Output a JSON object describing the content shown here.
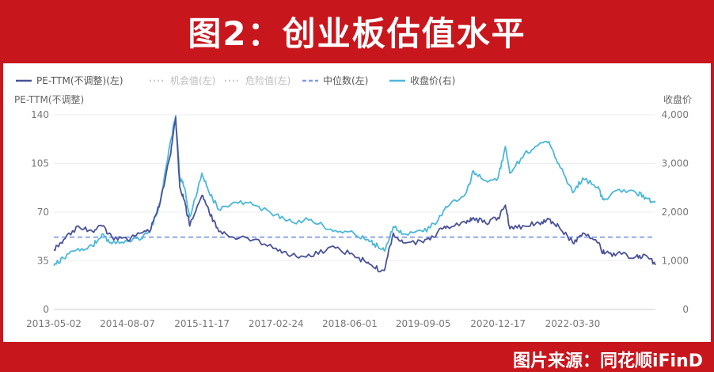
{
  "banner": {
    "title": "图2：创业板估值水平"
  },
  "footer": {
    "source": "图片来源：同花顺iFinD"
  },
  "chart_data": {
    "type": "line",
    "legend": [
      {
        "label": "PE-TTM(不调整)(左)",
        "color": "#4a5299",
        "style": "solid",
        "faded": false
      },
      {
        "label": "机会值(左)",
        "color": "#cccccc",
        "style": "dotted",
        "faded": true
      },
      {
        "label": "危险值(左)",
        "color": "#cccccc",
        "style": "dotted",
        "faded": true
      },
      {
        "label": "中位数(左)",
        "color": "#7f9be8",
        "style": "dashed",
        "faded": false
      },
      {
        "label": "收盘价(右)",
        "color": "#4bb8d9",
        "style": "solid",
        "faded": false
      }
    ],
    "ylabel_left": "PE-TTM(不调整)",
    "ylabel_right": "收盘价",
    "ylim_left": [
      0,
      140
    ],
    "ylim_right": [
      0,
      4000
    ],
    "yticks_left": [
      "0",
      "35",
      "70",
      "105",
      "140"
    ],
    "yticks_right": [
      "0",
      "1,000",
      "2,000",
      "3,000",
      "4,000"
    ],
    "xticks": [
      "2013-05-02",
      "2014-08-07",
      "2015-11-17",
      "2017-02-24",
      "2018-06-01",
      "2019-09-05",
      "2020-12-17",
      "2022-03-30"
    ],
    "x_range": [
      "2013-05-02",
      "2023-08-31"
    ],
    "grid": true,
    "legend_position": "top-left",
    "median_pe": 52,
    "series": [
      {
        "name": "PE-TTM(不调整)(左)",
        "axis": "left",
        "points": [
          [
            "2013-05-02",
            43
          ],
          [
            "2013-07-01",
            50
          ],
          [
            "2013-10-01",
            60
          ],
          [
            "2014-01-01",
            56
          ],
          [
            "2014-03-01",
            60
          ],
          [
            "2014-05-01",
            52
          ],
          [
            "2014-08-07",
            50
          ],
          [
            "2014-11-01",
            55
          ],
          [
            "2015-01-01",
            58
          ],
          [
            "2015-03-01",
            78
          ],
          [
            "2015-05-01",
            110
          ],
          [
            "2015-06-05",
            138
          ],
          [
            "2015-07-01",
            88
          ],
          [
            "2015-08-01",
            78
          ],
          [
            "2015-09-01",
            60
          ],
          [
            "2015-11-17",
            82
          ],
          [
            "2016-01-01",
            70
          ],
          [
            "2016-03-01",
            56
          ],
          [
            "2016-06-01",
            52
          ],
          [
            "2016-10-01",
            50
          ],
          [
            "2017-02-24",
            44
          ],
          [
            "2017-06-01",
            39
          ],
          [
            "2017-10-01",
            38
          ],
          [
            "2018-02-01",
            45
          ],
          [
            "2018-06-01",
            40
          ],
          [
            "2018-09-01",
            35
          ],
          [
            "2018-11-01",
            30
          ],
          [
            "2019-01-04",
            28
          ],
          [
            "2019-03-01",
            55
          ],
          [
            "2019-05-01",
            48
          ],
          [
            "2019-09-05",
            48
          ],
          [
            "2019-12-01",
            55
          ],
          [
            "2020-02-01",
            60
          ],
          [
            "2020-06-01",
            62
          ],
          [
            "2020-07-15",
            66
          ],
          [
            "2020-10-01",
            62
          ],
          [
            "2020-12-17",
            66
          ],
          [
            "2021-02-01",
            75
          ],
          [
            "2021-03-01",
            58
          ],
          [
            "2021-06-01",
            60
          ],
          [
            "2021-09-01",
            62
          ],
          [
            "2021-11-01",
            65
          ],
          [
            "2022-01-01",
            60
          ],
          [
            "2022-03-30",
            48
          ],
          [
            "2022-06-01",
            55
          ],
          [
            "2022-09-01",
            48
          ],
          [
            "2022-10-15",
            40
          ],
          [
            "2023-01-01",
            40
          ],
          [
            "2023-05-01",
            38
          ],
          [
            "2023-07-01",
            39
          ],
          [
            "2023-08-31",
            32
          ]
        ]
      },
      {
        "name": "收盘价(右)",
        "axis": "right",
        "points": [
          [
            "2013-05-02",
            900
          ],
          [
            "2013-07-01",
            1050
          ],
          [
            "2013-10-01",
            1250
          ],
          [
            "2014-01-01",
            1300
          ],
          [
            "2014-03-01",
            1550
          ],
          [
            "2014-05-01",
            1350
          ],
          [
            "2014-08-07",
            1400
          ],
          [
            "2014-11-01",
            1450
          ],
          [
            "2015-01-01",
            1650
          ],
          [
            "2015-03-01",
            2200
          ],
          [
            "2015-05-01",
            3400
          ],
          [
            "2015-06-05",
            3980
          ],
          [
            "2015-07-01",
            2700
          ],
          [
            "2015-08-01",
            2500
          ],
          [
            "2015-09-01",
            1900
          ],
          [
            "2015-11-17",
            2800
          ],
          [
            "2016-01-01",
            2400
          ],
          [
            "2016-03-01",
            2050
          ],
          [
            "2016-06-01",
            2200
          ],
          [
            "2016-10-01",
            2150
          ],
          [
            "2017-02-24",
            1950
          ],
          [
            "2017-06-01",
            1800
          ],
          [
            "2017-10-01",
            1850
          ],
          [
            "2018-02-01",
            1650
          ],
          [
            "2018-06-01",
            1600
          ],
          [
            "2018-09-01",
            1450
          ],
          [
            "2018-11-01",
            1350
          ],
          [
            "2019-01-04",
            1200
          ],
          [
            "2019-03-01",
            1700
          ],
          [
            "2019-05-01",
            1550
          ],
          [
            "2019-09-05",
            1600
          ],
          [
            "2019-12-01",
            1800
          ],
          [
            "2020-02-01",
            2100
          ],
          [
            "2020-06-01",
            2400
          ],
          [
            "2020-07-15",
            2850
          ],
          [
            "2020-10-01",
            2650
          ],
          [
            "2020-12-17",
            2700
          ],
          [
            "2021-02-01",
            3350
          ],
          [
            "2021-03-01",
            2800
          ],
          [
            "2021-06-01",
            3200
          ],
          [
            "2021-09-01",
            3400
          ],
          [
            "2021-11-01",
            3450
          ],
          [
            "2022-01-01",
            3000
          ],
          [
            "2022-03-30",
            2400
          ],
          [
            "2022-06-01",
            2700
          ],
          [
            "2022-09-01",
            2500
          ],
          [
            "2022-10-15",
            2250
          ],
          [
            "2023-01-01",
            2450
          ],
          [
            "2023-05-01",
            2400
          ],
          [
            "2023-07-01",
            2300
          ],
          [
            "2023-08-31",
            2200
          ]
        ]
      }
    ]
  }
}
